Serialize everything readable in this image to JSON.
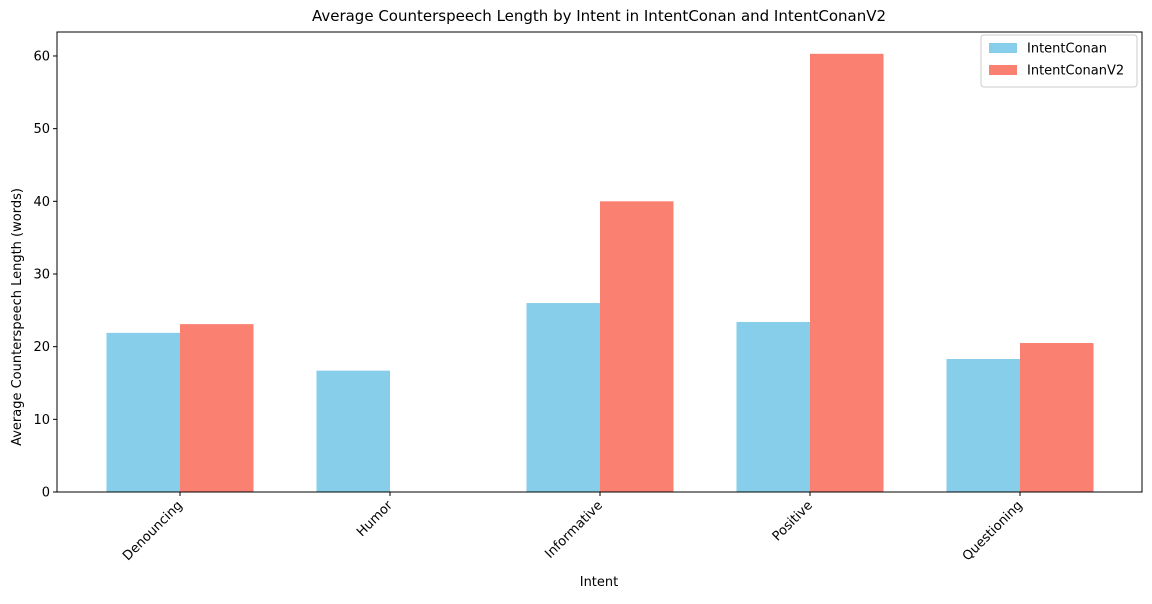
{
  "chart_data": {
    "type": "bar",
    "title": "Average Counterspeech Length by Intent in IntentConan and IntentConanV2",
    "xlabel": "Intent",
    "ylabel": "Average Counterspeech Length (words)",
    "categories": [
      "Denouncing",
      "Humor",
      "Informative",
      "Positive",
      "Questioning"
    ],
    "series": [
      {
        "name": "IntentConan",
        "values": [
          21.9,
          16.7,
          26.0,
          23.4,
          18.3
        ],
        "color": "#87CEEB"
      },
      {
        "name": "IntentConanV2",
        "values": [
          23.1,
          null,
          40.0,
          60.3,
          20.5
        ],
        "color": "#FA8072"
      }
    ],
    "ylim": [
      0,
      63.3
    ],
    "yticks": [
      0,
      10,
      20,
      30,
      40,
      50,
      60
    ],
    "legend_position": "top-right",
    "grid": false
  }
}
